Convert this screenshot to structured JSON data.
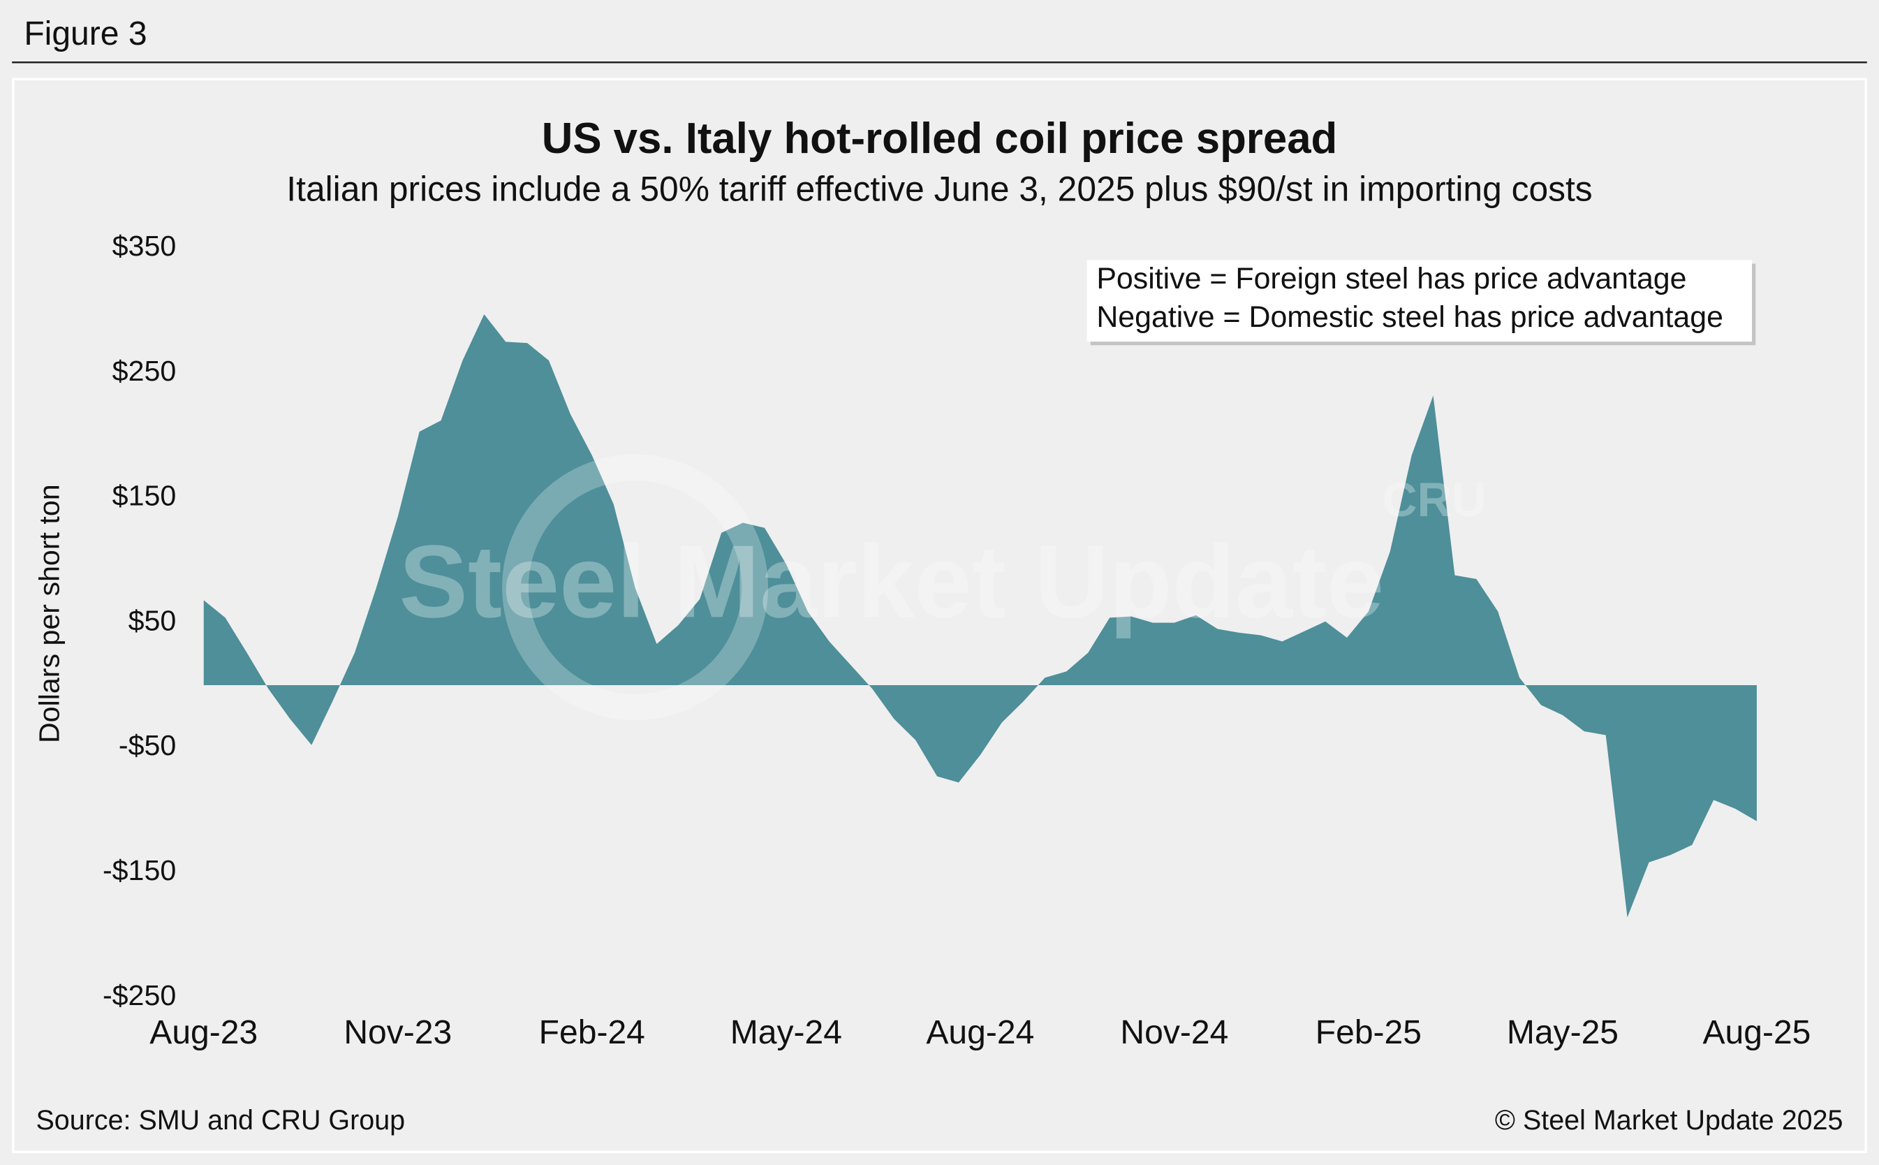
{
  "figure_label": "Figure 3",
  "chart_data": {
    "type": "area",
    "title": "US vs. Italy hot-rolled coil price spread",
    "subtitle": "Italian prices include a 50% tariff effective June 3, 2025 plus $90/st in importing costs",
    "y_label": "Dollars per short ton",
    "annotations": [
      "Positive = Foreign steel has price advantage",
      "Negative = Domestic steel has price advantage"
    ],
    "watermark": [
      "Steel Market Update",
      "CRU"
    ],
    "source": "Source: SMU and CRU Group",
    "credit": "© Steel Market Update 2025",
    "color": "#4e8f99",
    "categories": [
      "Aug-23",
      null,
      null,
      null,
      null,
      null,
      null,
      null,
      null,
      "Nov-23",
      null,
      null,
      null,
      null,
      null,
      null,
      null,
      null,
      "Feb-24",
      null,
      null,
      null,
      null,
      null,
      null,
      null,
      null,
      "May-24",
      null,
      null,
      null,
      null,
      null,
      null,
      null,
      null,
      "Aug-24",
      null,
      null,
      null,
      null,
      null,
      null,
      null,
      null,
      "Nov-24",
      null,
      null,
      null,
      null,
      null,
      null,
      null,
      null,
      "Feb-25",
      null,
      null,
      null,
      null,
      null,
      null,
      null,
      null,
      "May-25",
      null,
      null,
      null,
      null,
      null,
      null,
      null,
      null,
      "Aug-25"
    ],
    "values": [
      68,
      54,
      26,
      -3,
      -27,
      -48,
      -12,
      26,
      78,
      135,
      203,
      212,
      260,
      297,
      275,
      274,
      260,
      217,
      184,
      145,
      78,
      33,
      48,
      69,
      122,
      130,
      126,
      97,
      59,
      35,
      16,
      -3,
      -27,
      -44,
      -73,
      -78,
      -56,
      -30,
      -13,
      6,
      11,
      26,
      54,
      55,
      50,
      50,
      56,
      45,
      42,
      40,
      35,
      43,
      51,
      38,
      59,
      107,
      184,
      232,
      88,
      85,
      59,
      6,
      -16,
      -24,
      -37,
      -40,
      -186,
      -142,
      -136,
      -128,
      -92,
      -99,
      -109
    ],
    "ylim": [
      -250,
      350
    ],
    "yticks": [
      {
        "value": 350,
        "label": "$350"
      },
      {
        "value": 250,
        "label": "$250"
      },
      {
        "value": 150,
        "label": "$150"
      },
      {
        "value": 50,
        "label": "$50"
      },
      {
        "value": -50,
        "label": "-$50"
      },
      {
        "value": -150,
        "label": "-$150"
      },
      {
        "value": -250,
        "label": "-$250"
      }
    ],
    "grid": false
  }
}
